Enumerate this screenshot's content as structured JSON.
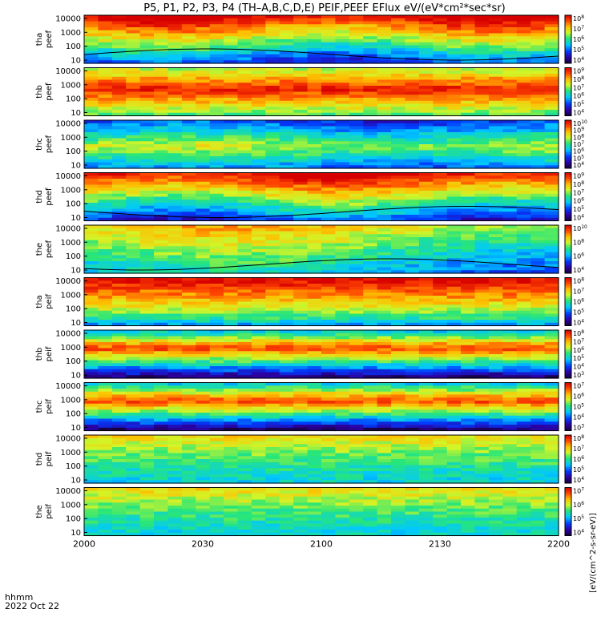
{
  "chart_data": {
    "type": "heatmap",
    "title": "P5, P1, P2, P3, P4 (TH-A,B,C,D,E) PEIF,PEEF EFlux eV/(eV*cm^2*sec*sr)",
    "title_display": "P5, P1, P2, P3, P4 (TH–A,B,C,D,E) PEIF,PEEF EFlux eV/(eV*cm²*sec*sr)",
    "colorbar_label": "[eV/(cm^2-s-sr-eV)]",
    "x_axis": {
      "label": "hhmm",
      "date_label": "2022 Oct 22",
      "range": [
        "2000",
        "2200"
      ],
      "tick_labels": [
        "2000",
        "2030",
        "2100",
        "2130",
        "2200"
      ]
    },
    "y_ticks": [
      "10000",
      "1000",
      "100",
      "10"
    ],
    "panels": [
      {
        "probe": "tha",
        "product": "peef",
        "label": "tha\npeef",
        "cbar_ticks": [
          "10^8",
          "10^7",
          "10^6",
          "10^5",
          "10^4"
        ],
        "profile": "hot",
        "overlay": true
      },
      {
        "probe": "thb",
        "product": "peef",
        "label": "thb\npeef",
        "cbar_ticks": [
          "10^9",
          "10^8",
          "10^7",
          "10^6",
          "10^5",
          "10^4"
        ],
        "profile": "hot_low",
        "overlay": false
      },
      {
        "probe": "thc",
        "product": "peef",
        "label": "thc\npeef",
        "cbar_ticks": [
          "10^10",
          "10^9",
          "10^8",
          "10^7",
          "10^6",
          "10^5",
          "10^4"
        ],
        "profile": "cool",
        "overlay": false
      },
      {
        "probe": "thd",
        "product": "peef",
        "label": "thd\npeef",
        "cbar_ticks": [
          "10^9",
          "10^8",
          "10^7",
          "10^6",
          "10^5",
          "10^4"
        ],
        "profile": "hot",
        "overlay": true
      },
      {
        "probe": "the",
        "product": "peef",
        "label": "the\npeef",
        "cbar_ticks": [
          "10^10",
          "10^8",
          "10^6",
          "10^4"
        ],
        "profile": "mid",
        "overlay": true
      },
      {
        "probe": "tha",
        "product": "peif",
        "label": "tha\npeif",
        "cbar_ticks": [
          "10^8",
          "10^7",
          "10^6",
          "10^5",
          "10^4"
        ],
        "profile": "ion_hot",
        "overlay": false
      },
      {
        "probe": "thb",
        "product": "peif",
        "label": "thb\npeif",
        "cbar_ticks": [
          "10^8",
          "10^7",
          "10^6",
          "10^5",
          "10^4",
          "10^3"
        ],
        "profile": "ion_band",
        "overlay": false
      },
      {
        "probe": "thc",
        "product": "peif",
        "label": "thc\npeif",
        "cbar_ticks": [
          "10^7",
          "10^6",
          "10^5",
          "10^4",
          "10^3"
        ],
        "profile": "ion_band",
        "overlay": false
      },
      {
        "probe": "thd",
        "product": "peif",
        "label": "thd\npeif",
        "cbar_ticks": [
          "10^8",
          "10^7",
          "10^6",
          "10^5",
          "10^4"
        ],
        "profile": "ion_cool",
        "overlay": false
      },
      {
        "probe": "the",
        "product": "peif",
        "label": "the\npeif",
        "cbar_ticks": [
          "10^7",
          "10^6",
          "10^5",
          "10^4"
        ],
        "profile": "ion_cool",
        "overlay": false
      }
    ]
  }
}
